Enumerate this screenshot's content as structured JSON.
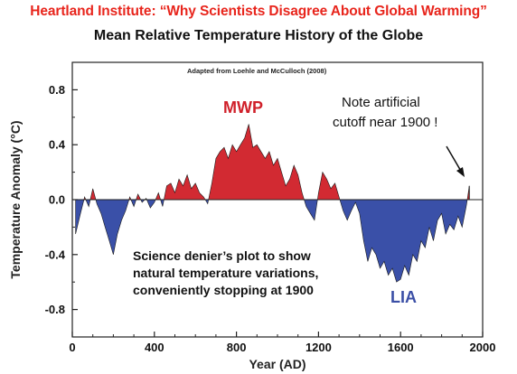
{
  "header": {
    "top_title": "Heartland Institute: “Why Scientists Disagree About Global Warming”",
    "main_title": "Mean Relative Temperature History of the Globe"
  },
  "annotations": {
    "source": "Adapted from Loehle and McCulloch (2008)",
    "mwp": "MWP",
    "lia": "LIA",
    "note_line1": "Note artificial",
    "note_line2": "cutoff near 1900 !",
    "denier_line1": "Science denier’s plot to show",
    "denier_line2": "natural temperature variations,",
    "denier_line3": "conveniently stopping at 1900"
  },
  "colors": {
    "positive": "#d22a32",
    "negative": "#3a50a8",
    "top_title": "#e8251c"
  },
  "chart_data": {
    "type": "area",
    "xlabel": "Year (AD)",
    "ylabel": "Temperature Anomaly (°C)",
    "xlim": [
      0,
      2000
    ],
    "ylim": [
      -1.0,
      1.0
    ],
    "x_ticks": [
      "0",
      "400",
      "800",
      "1200",
      "1600",
      "2000"
    ],
    "y_ticks": [
      "0.8",
      "0.4",
      "0.0",
      "-0.4",
      "-0.8"
    ],
    "grid": false,
    "series": [
      {
        "x": [
          16,
          40,
          60,
          80,
          100,
          120,
          140,
          160,
          180,
          200,
          220,
          240,
          260,
          280,
          300,
          320,
          340,
          360,
          380,
          400,
          420,
          440,
          460,
          480,
          500,
          520,
          540,
          560,
          580,
          600,
          620,
          640,
          660,
          680,
          700,
          720,
          740,
          760,
          780,
          800,
          820,
          840,
          860,
          880,
          900,
          920,
          940,
          960,
          980,
          1000,
          1020,
          1040,
          1060,
          1080,
          1100,
          1120,
          1140,
          1160,
          1180,
          1200,
          1220,
          1240,
          1260,
          1280,
          1300,
          1320,
          1340,
          1360,
          1380,
          1400,
          1420,
          1440,
          1460,
          1480,
          1500,
          1520,
          1540,
          1560,
          1580,
          1600,
          1620,
          1640,
          1660,
          1680,
          1700,
          1720,
          1740,
          1760,
          1780,
          1800,
          1820,
          1840,
          1860,
          1880,
          1900,
          1920,
          1935
        ],
        "y": [
          -0.25,
          -0.1,
          0.02,
          -0.05,
          0.08,
          -0.03,
          -0.1,
          -0.2,
          -0.3,
          -0.4,
          -0.25,
          -0.15,
          -0.08,
          0.02,
          -0.05,
          0.04,
          -0.02,
          0.01,
          -0.06,
          -0.02,
          0.05,
          -0.05,
          0.1,
          0.12,
          0.05,
          0.15,
          0.1,
          0.18,
          0.08,
          0.12,
          0.05,
          0.02,
          -0.03,
          0.12,
          0.3,
          0.35,
          0.38,
          0.3,
          0.4,
          0.35,
          0.4,
          0.45,
          0.55,
          0.38,
          0.4,
          0.35,
          0.3,
          0.35,
          0.25,
          0.3,
          0.2,
          0.1,
          0.15,
          0.25,
          0.18,
          0.05,
          -0.05,
          -0.1,
          -0.15,
          0.05,
          0.2,
          0.15,
          0.08,
          0.12,
          0.02,
          -0.08,
          -0.15,
          -0.08,
          -0.02,
          -0.1,
          -0.3,
          -0.45,
          -0.35,
          -0.4,
          -0.5,
          -0.45,
          -0.55,
          -0.5,
          -0.6,
          -0.58,
          -0.48,
          -0.55,
          -0.4,
          -0.45,
          -0.3,
          -0.35,
          -0.2,
          -0.3,
          -0.15,
          -0.1,
          -0.25,
          -0.18,
          -0.22,
          -0.12,
          -0.2,
          -0.05,
          0.1
        ]
      }
    ]
  }
}
